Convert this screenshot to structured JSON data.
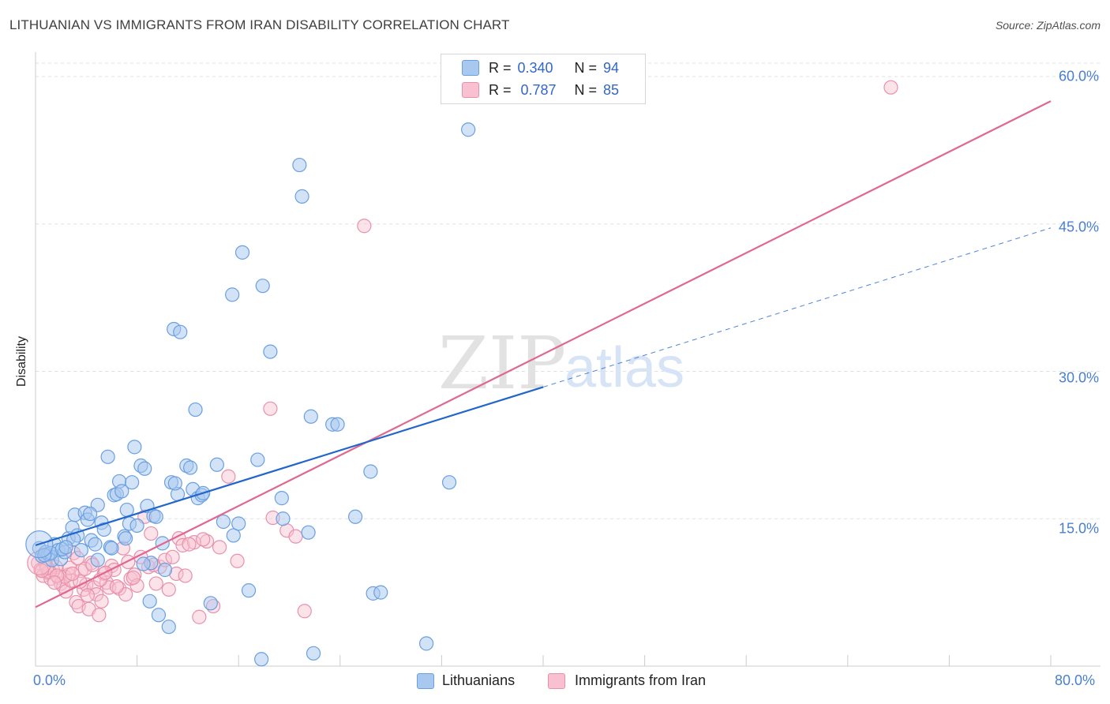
{
  "header": {
    "title": "LITHUANIAN VS IMMIGRANTS FROM IRAN DISABILITY CORRELATION CHART",
    "source": "Source: ZipAtlas.com"
  },
  "watermark": {
    "zip": "ZIP",
    "atlas": "atlas"
  },
  "legend": {
    "blue": {
      "r_label": "R =",
      "r_value": "0.340",
      "n_label": "N =",
      "n_value": "94"
    },
    "pink": {
      "r_label": "R =",
      "r_value": "0.787",
      "n_label": "N =",
      "n_value": "85"
    }
  },
  "colors": {
    "blue_fill": "#a8c8f0",
    "blue_stroke": "#6a9fe0",
    "blue_line": "#2266cc",
    "pink_fill": "#f8c0d0",
    "pink_stroke": "#e890aa",
    "pink_line": "#e06890",
    "tick_text": "#4a7fd0"
  },
  "chart_data": {
    "type": "scatter",
    "title": "LITHUANIAN VS IMMIGRANTS FROM IRAN DISABILITY CORRELATION CHART",
    "xlabel": "",
    "ylabel": "Disability",
    "xlim": [
      0,
      80
    ],
    "ylim": [
      0,
      60
    ],
    "y_ticks": [
      15,
      30,
      45,
      60
    ],
    "y_tick_labels": [
      "15.0%",
      "30.0%",
      "45.0%",
      "60.0%"
    ],
    "x_tick_labels": [
      "0.0%",
      "80.0%"
    ],
    "grid": true,
    "legend_position": "top-center",
    "series": [
      {
        "name": "Lithuanians",
        "color": "#a8c8f0",
        "r": 0.34,
        "n": 94,
        "trend": {
          "x0": 0,
          "y0": 12.3,
          "x1": 40,
          "y1": 28.4,
          "dashed_to_x": 80,
          "dashed_to_y": 44.6
        },
        "points": [
          [
            0.3,
            12.0
          ],
          [
            0.5,
            11.2
          ],
          [
            0.8,
            11.6
          ],
          [
            1.0,
            11.4
          ],
          [
            1.3,
            10.8
          ],
          [
            1.5,
            12.4
          ],
          [
            1.8,
            11.8
          ],
          [
            2.0,
            10.9
          ],
          [
            2.3,
            11.6
          ],
          [
            2.6,
            13.0
          ],
          [
            2.9,
            14.1
          ],
          [
            3.1,
            15.4
          ],
          [
            3.3,
            13.3
          ],
          [
            3.6,
            11.8
          ],
          [
            3.9,
            15.6
          ],
          [
            4.1,
            14.9
          ],
          [
            4.4,
            12.8
          ],
          [
            4.7,
            12.4
          ],
          [
            4.9,
            16.4
          ],
          [
            5.2,
            14.6
          ],
          [
            5.4,
            13.9
          ],
          [
            5.7,
            21.3
          ],
          [
            5.9,
            12.1
          ],
          [
            6.2,
            17.4
          ],
          [
            6.4,
            17.5
          ],
          [
            6.6,
            18.8
          ],
          [
            6.8,
            17.8
          ],
          [
            7.0,
            13.2
          ],
          [
            7.2,
            15.9
          ],
          [
            7.4,
            14.5
          ],
          [
            7.6,
            18.7
          ],
          [
            7.8,
            22.3
          ],
          [
            8.0,
            14.3
          ],
          [
            8.3,
            20.4
          ],
          [
            8.6,
            20.1
          ],
          [
            8.8,
            16.3
          ],
          [
            9.0,
            6.6
          ],
          [
            9.3,
            15.3
          ],
          [
            9.5,
            15.2
          ],
          [
            9.7,
            5.2
          ],
          [
            10.0,
            12.5
          ],
          [
            10.2,
            9.8
          ],
          [
            10.5,
            4.0
          ],
          [
            10.7,
            18.7
          ],
          [
            10.9,
            34.3
          ],
          [
            11.2,
            17.5
          ],
          [
            11.4,
            34.0
          ],
          [
            11.9,
            20.4
          ],
          [
            12.2,
            20.2
          ],
          [
            12.4,
            18.0
          ],
          [
            12.6,
            26.1
          ],
          [
            12.8,
            17.1
          ],
          [
            13.1,
            17.4
          ],
          [
            13.8,
            6.4
          ],
          [
            14.3,
            20.5
          ],
          [
            14.8,
            14.7
          ],
          [
            15.5,
            37.8
          ],
          [
            15.6,
            13.3
          ],
          [
            16.0,
            14.5
          ],
          [
            16.3,
            42.1
          ],
          [
            16.8,
            7.7
          ],
          [
            17.5,
            21.0
          ],
          [
            17.8,
            0.7
          ],
          [
            17.9,
            38.7
          ],
          [
            18.5,
            32.0
          ],
          [
            19.4,
            17.1
          ],
          [
            19.5,
            15.0
          ],
          [
            20.8,
            51.0
          ],
          [
            21.0,
            47.8
          ],
          [
            21.5,
            13.6
          ],
          [
            21.9,
            1.3
          ],
          [
            21.7,
            25.4
          ],
          [
            23.4,
            24.6
          ],
          [
            23.8,
            24.6
          ],
          [
            25.2,
            15.2
          ],
          [
            26.4,
            19.8
          ],
          [
            26.6,
            7.4
          ],
          [
            27.2,
            7.5
          ],
          [
            30.8,
            2.3
          ],
          [
            32.6,
            18.7
          ],
          [
            34.1,
            54.6
          ],
          [
            1.2,
            11.5
          ],
          [
            2.1,
            11.9
          ],
          [
            0.7,
            11.3
          ],
          [
            9.1,
            10.5
          ],
          [
            4.9,
            10.8
          ],
          [
            3.0,
            12.9
          ],
          [
            6.0,
            12.0
          ],
          [
            13.2,
            17.6
          ],
          [
            8.5,
            10.4
          ],
          [
            11.0,
            18.6
          ],
          [
            2.4,
            12.1
          ],
          [
            4.3,
            15.5
          ],
          [
            7.1,
            13.0
          ]
        ]
      },
      {
        "name": "Immigrants from Iran",
        "color": "#f8c0d0",
        "r": 0.787,
        "n": 85,
        "trend": {
          "x0": 0,
          "y0": 6.0,
          "x1": 80,
          "y1": 57.5
        },
        "points": [
          [
            0.2,
            10.5
          ],
          [
            0.4,
            9.8
          ],
          [
            0.6,
            9.2
          ],
          [
            0.8,
            10.4
          ],
          [
            1.0,
            9.5
          ],
          [
            1.2,
            8.9
          ],
          [
            1.4,
            9.7
          ],
          [
            1.6,
            10.1
          ],
          [
            1.8,
            9.0
          ],
          [
            2.0,
            8.4
          ],
          [
            2.2,
            8.1
          ],
          [
            2.4,
            7.6
          ],
          [
            2.6,
            9.3
          ],
          [
            2.8,
            8.7
          ],
          [
            3.0,
            11.5
          ],
          [
            3.2,
            6.5
          ],
          [
            3.4,
            6.1
          ],
          [
            3.6,
            9.7
          ],
          [
            3.8,
            7.8
          ],
          [
            4.0,
            8.3
          ],
          [
            4.2,
            5.8
          ],
          [
            4.4,
            10.5
          ],
          [
            4.6,
            8.0
          ],
          [
            4.8,
            7.3
          ],
          [
            5.0,
            5.2
          ],
          [
            5.2,
            6.6
          ],
          [
            5.4,
            9.4
          ],
          [
            5.6,
            8.5
          ],
          [
            5.8,
            8.0
          ],
          [
            6.0,
            10.2
          ],
          [
            6.2,
            9.8
          ],
          [
            6.6,
            7.9
          ],
          [
            6.9,
            12.0
          ],
          [
            7.1,
            7.3
          ],
          [
            7.3,
            10.6
          ],
          [
            7.5,
            8.9
          ],
          [
            7.8,
            9.3
          ],
          [
            8.0,
            8.2
          ],
          [
            8.3,
            11.1
          ],
          [
            8.6,
            15.2
          ],
          [
            8.9,
            10.1
          ],
          [
            9.1,
            13.5
          ],
          [
            9.5,
            8.4
          ],
          [
            9.8,
            10.1
          ],
          [
            10.2,
            10.8
          ],
          [
            10.5,
            7.8
          ],
          [
            10.8,
            11.1
          ],
          [
            11.1,
            9.4
          ],
          [
            11.3,
            13.0
          ],
          [
            11.6,
            12.3
          ],
          [
            11.8,
            9.2
          ],
          [
            12.5,
            12.6
          ],
          [
            12.9,
            5.0
          ],
          [
            13.5,
            12.7
          ],
          [
            14.0,
            6.1
          ],
          [
            14.5,
            12.1
          ],
          [
            15.2,
            19.3
          ],
          [
            15.9,
            10.7
          ],
          [
            18.5,
            26.2
          ],
          [
            18.7,
            15.1
          ],
          [
            19.8,
            13.8
          ],
          [
            20.5,
            13.2
          ],
          [
            21.2,
            5.6
          ],
          [
            25.9,
            44.8
          ],
          [
            67.4,
            58.9
          ],
          [
            1.1,
            9.6
          ],
          [
            0.9,
            10.0
          ],
          [
            2.3,
            9.1
          ],
          [
            3.5,
            8.6
          ],
          [
            1.7,
            9.2
          ],
          [
            0.5,
            9.7
          ],
          [
            2.7,
            10.0
          ],
          [
            4.1,
            7.2
          ],
          [
            3.9,
            9.9
          ],
          [
            5.1,
            8.8
          ],
          [
            6.4,
            8.1
          ],
          [
            1.5,
            8.5
          ],
          [
            2.9,
            9.4
          ],
          [
            3.3,
            11.0
          ],
          [
            4.5,
            10.3
          ],
          [
            5.5,
            9.5
          ],
          [
            7.7,
            9.0
          ],
          [
            9.3,
            10.3
          ],
          [
            12.1,
            12.4
          ],
          [
            13.2,
            12.9
          ]
        ]
      }
    ]
  },
  "bottom_legend": {
    "blue_label": "Lithuanians",
    "pink_label": "Immigrants from Iran"
  }
}
